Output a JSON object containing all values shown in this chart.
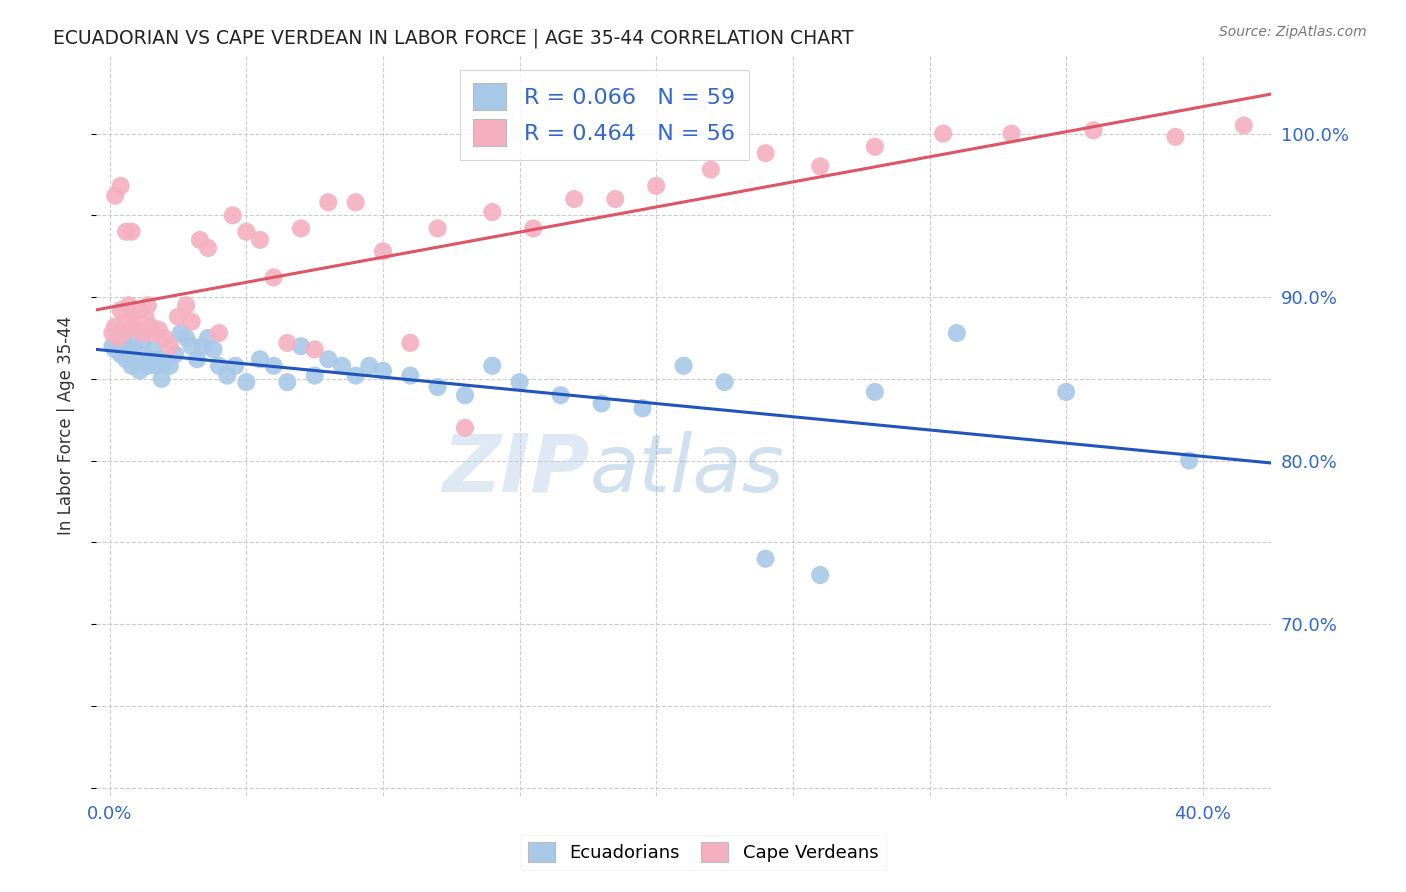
{
  "title": "ECUADORIAN VS CAPE VERDEAN IN LABOR FORCE | AGE 35-44 CORRELATION CHART",
  "source": "Source: ZipAtlas.com",
  "ylabel": "In Labor Force | Age 35-44",
  "xlim": [
    -0.005,
    0.425
  ],
  "ylim": [
    0.595,
    1.048
  ],
  "ecuadorian_color": "#a8c8e8",
  "cape_verdean_color": "#f4b0c0",
  "ecuadorian_line_color": "#2255bb",
  "cape_verdean_line_color": "#dd5566",
  "watermark_color": "#c8ddf0",
  "legend_r_ecu": "R = 0.066",
  "legend_n_ecu": "N = 59",
  "legend_r_cape": "R = 0.464",
  "legend_n_cape": "N = 56",
  "ecuadorian_x": [
    0.001,
    0.002,
    0.003,
    0.004,
    0.005,
    0.006,
    0.007,
    0.008,
    0.009,
    0.01,
    0.011,
    0.012,
    0.013,
    0.014,
    0.015,
    0.016,
    0.017,
    0.018,
    0.019,
    0.02,
    0.022,
    0.024,
    0.026,
    0.028,
    0.03,
    0.032,
    0.034,
    0.036,
    0.038,
    0.04,
    0.043,
    0.046,
    0.05,
    0.055,
    0.06,
    0.065,
    0.07,
    0.075,
    0.08,
    0.085,
    0.09,
    0.095,
    0.1,
    0.11,
    0.12,
    0.13,
    0.14,
    0.15,
    0.165,
    0.18,
    0.195,
    0.21,
    0.225,
    0.24,
    0.26,
    0.28,
    0.31,
    0.35,
    0.395
  ],
  "ecuadorian_y": [
    0.87,
    0.868,
    0.872,
    0.865,
    0.875,
    0.862,
    0.868,
    0.858,
    0.87,
    0.862,
    0.855,
    0.872,
    0.86,
    0.858,
    0.862,
    0.868,
    0.858,
    0.862,
    0.85,
    0.86,
    0.858,
    0.865,
    0.878,
    0.875,
    0.87,
    0.862,
    0.87,
    0.875,
    0.868,
    0.858,
    0.852,
    0.858,
    0.848,
    0.862,
    0.858,
    0.848,
    0.87,
    0.852,
    0.862,
    0.858,
    0.852,
    0.858,
    0.855,
    0.852,
    0.845,
    0.84,
    0.858,
    0.848,
    0.84,
    0.835,
    0.832,
    0.858,
    0.848,
    0.74,
    0.73,
    0.842,
    0.878,
    0.842,
    0.8
  ],
  "cape_verdean_x": [
    0.001,
    0.002,
    0.003,
    0.004,
    0.005,
    0.006,
    0.007,
    0.008,
    0.009,
    0.01,
    0.011,
    0.012,
    0.013,
    0.014,
    0.015,
    0.016,
    0.018,
    0.02,
    0.022,
    0.025,
    0.028,
    0.03,
    0.033,
    0.036,
    0.04,
    0.045,
    0.05,
    0.055,
    0.06,
    0.065,
    0.07,
    0.075,
    0.08,
    0.09,
    0.1,
    0.11,
    0.12,
    0.13,
    0.14,
    0.155,
    0.17,
    0.185,
    0.2,
    0.22,
    0.24,
    0.26,
    0.28,
    0.305,
    0.33,
    0.36,
    0.39,
    0.415,
    0.002,
    0.004,
    0.006,
    0.008
  ],
  "cape_verdean_y": [
    0.878,
    0.882,
    0.875,
    0.892,
    0.878,
    0.885,
    0.895,
    0.888,
    0.882,
    0.88,
    0.892,
    0.878,
    0.888,
    0.895,
    0.882,
    0.878,
    0.88,
    0.875,
    0.87,
    0.888,
    0.895,
    0.885,
    0.935,
    0.93,
    0.878,
    0.95,
    0.94,
    0.935,
    0.912,
    0.872,
    0.942,
    0.868,
    0.958,
    0.958,
    0.928,
    0.872,
    0.942,
    0.82,
    0.952,
    0.942,
    0.96,
    0.96,
    0.968,
    0.978,
    0.988,
    0.98,
    0.992,
    1.0,
    1.0,
    1.002,
    0.998,
    1.005,
    0.962,
    0.968,
    0.94,
    0.94
  ]
}
